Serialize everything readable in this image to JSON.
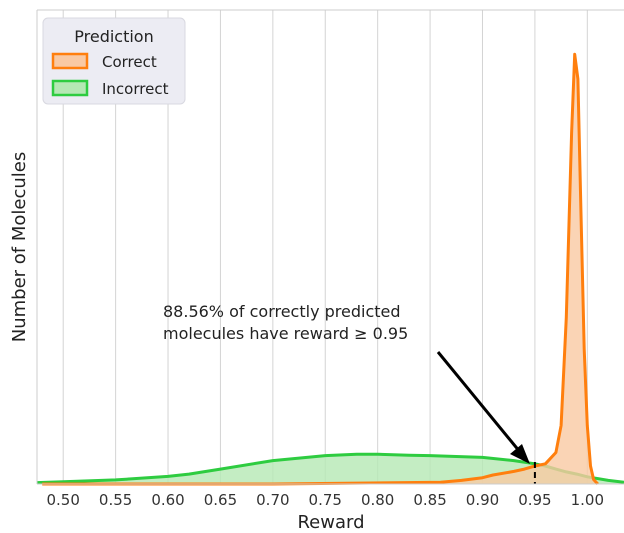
{
  "chart_data": {
    "type": "area",
    "title": "",
    "xlabel": "Reward",
    "ylabel": "Number of Molecules",
    "xlim": [
      0.475,
      1.035
    ],
    "ylim": [
      0,
      1.0
    ],
    "x_ticks": [
      "0.50",
      "0.55",
      "0.60",
      "0.65",
      "0.70",
      "0.75",
      "0.80",
      "0.85",
      "0.90",
      "0.95",
      "1.00"
    ],
    "grid": "vertical",
    "legend": {
      "title": "Prediction",
      "placement": "top-left"
    },
    "series": [
      {
        "name": "Correct",
        "color": "#ff7f0e",
        "fill": "#f9c9a3",
        "x": [
          0.48,
          0.7,
          0.86,
          0.88,
          0.9,
          0.91,
          0.93,
          0.94,
          0.95,
          0.96,
          0.97,
          0.975,
          0.98,
          0.985,
          0.988,
          0.991,
          0.994,
          0.997,
          1.0,
          1.003,
          1.006,
          1.01
        ],
        "y": [
          0.0,
          0.0,
          0.004,
          0.008,
          0.014,
          0.02,
          0.028,
          0.033,
          0.04,
          0.045,
          0.07,
          0.13,
          0.37,
          0.78,
          0.955,
          0.9,
          0.6,
          0.3,
          0.13,
          0.04,
          0.01,
          0.0
        ]
      },
      {
        "name": "Incorrect",
        "color": "#2ecc40",
        "fill": "#b5e8b4",
        "x": [
          0.475,
          0.5,
          0.55,
          0.6,
          0.62,
          0.65,
          0.7,
          0.75,
          0.78,
          0.8,
          0.83,
          0.85,
          0.9,
          0.93,
          0.95,
          0.96,
          0.97,
          0.98,
          0.99,
          1.0,
          1.02,
          1.035
        ],
        "y": [
          0.003,
          0.005,
          0.009,
          0.017,
          0.022,
          0.033,
          0.052,
          0.063,
          0.066,
          0.066,
          0.064,
          0.063,
          0.059,
          0.052,
          0.045,
          0.04,
          0.033,
          0.027,
          0.022,
          0.016,
          0.008,
          0.004
        ]
      }
    ],
    "annotations": [
      {
        "line1": "88.56% of correctly predicted",
        "line2": "molecules have reward  ≥ 0.95"
      }
    ],
    "threshold": 0.95
  }
}
